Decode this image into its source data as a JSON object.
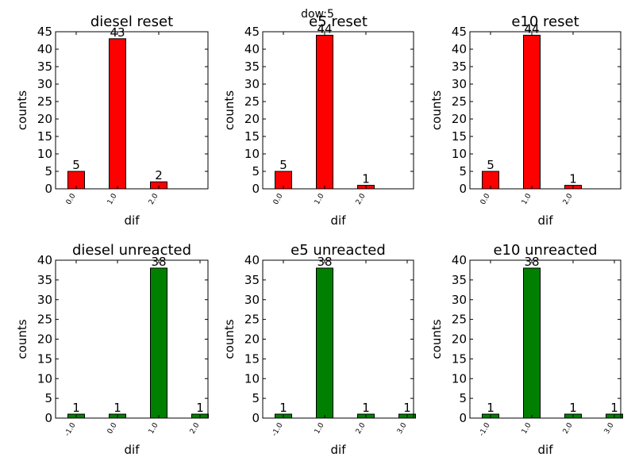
{
  "suptitle": "dow:5",
  "chart_data": [
    {
      "type": "bar",
      "title": "diesel reset",
      "xlabel": "dif",
      "ylabel": "counts",
      "categories": [
        "0.0",
        "1.0",
        "2.0"
      ],
      "values": [
        5,
        43,
        2
      ],
      "ylim": [
        0,
        45
      ],
      "yticks": [
        0,
        5,
        10,
        15,
        20,
        25,
        30,
        35,
        40,
        45
      ],
      "color": "#ff0000"
    },
    {
      "type": "bar",
      "title": "e5 reset",
      "xlabel": "dif",
      "ylabel": "counts",
      "categories": [
        "0.0",
        "1.0",
        "2.0"
      ],
      "values": [
        5,
        44,
        1
      ],
      "ylim": [
        0,
        45
      ],
      "yticks": [
        0,
        5,
        10,
        15,
        20,
        25,
        30,
        35,
        40,
        45
      ],
      "color": "#ff0000"
    },
    {
      "type": "bar",
      "title": "e10 reset",
      "xlabel": "dif",
      "ylabel": "counts",
      "categories": [
        "0.0",
        "1.0",
        "2.0"
      ],
      "values": [
        5,
        44,
        1
      ],
      "ylim": [
        0,
        45
      ],
      "yticks": [
        0,
        5,
        10,
        15,
        20,
        25,
        30,
        35,
        40,
        45
      ],
      "color": "#ff0000"
    },
    {
      "type": "bar",
      "title": "diesel unreacted",
      "xlabel": "dif",
      "ylabel": "counts",
      "categories": [
        "-1.0",
        "0.0",
        "1.0",
        "2.0"
      ],
      "values": [
        1,
        1,
        38,
        1
      ],
      "ylim": [
        0,
        40
      ],
      "yticks": [
        0,
        5,
        10,
        15,
        20,
        25,
        30,
        35,
        40
      ],
      "color": "#008000"
    },
    {
      "type": "bar",
      "title": "e5 unreacted",
      "xlabel": "dif",
      "ylabel": "counts",
      "categories": [
        "-1.0",
        "1.0",
        "2.0",
        "3.0"
      ],
      "values": [
        1,
        38,
        1,
        1
      ],
      "ylim": [
        0,
        40
      ],
      "yticks": [
        0,
        5,
        10,
        15,
        20,
        25,
        30,
        35,
        40
      ],
      "color": "#008000"
    },
    {
      "type": "bar",
      "title": "e10 unreacted",
      "xlabel": "dif",
      "ylabel": "counts",
      "categories": [
        "-1.0",
        "1.0",
        "2.0",
        "3.0"
      ],
      "values": [
        1,
        38,
        1,
        1
      ],
      "ylim": [
        0,
        40
      ],
      "yticks": [
        0,
        5,
        10,
        15,
        20,
        25,
        30,
        35,
        40
      ],
      "color": "#008000"
    }
  ]
}
